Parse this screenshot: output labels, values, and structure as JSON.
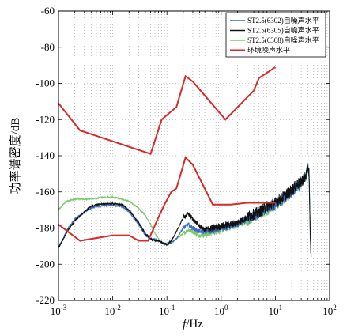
{
  "chart_data": {
    "type": "line",
    "title": "",
    "xlabel_italic": "f",
    "xlabel_rest": "/Hz",
    "ylabel": "功率谱密度/dB",
    "xscale": "log",
    "xlim": [
      0.001,
      100
    ],
    "ylim": [
      -220,
      -60
    ],
    "grid": true,
    "legend_position": "top-right",
    "x_ticks": [
      0.001,
      0.01,
      0.1,
      1,
      10,
      100
    ],
    "x_tick_labels": [
      {
        "base": "10",
        "exp": "-3"
      },
      {
        "base": "10",
        "exp": "-2"
      },
      {
        "base": "10",
        "exp": "-1"
      },
      {
        "base": "10",
        "exp": "0"
      },
      {
        "base": "10",
        "exp": "1"
      },
      {
        "base": "10",
        "exp": "2"
      }
    ],
    "y_ticks": [
      -60,
      -80,
      -100,
      -120,
      -140,
      -160,
      -180,
      -200,
      -220
    ],
    "y_tick_labels": [
      "-60",
      "-80",
      "-100",
      "-120",
      "-140",
      "-160",
      "-180",
      "-200",
      "-220"
    ],
    "series": [
      {
        "name": "ST2.5(6302)自噪声水平",
        "color": "#3b6fc4",
        "points": [
          [
            0.001,
            -191
          ],
          [
            0.0015,
            -180
          ],
          [
            0.002,
            -175
          ],
          [
            0.003,
            -171
          ],
          [
            0.004,
            -169
          ],
          [
            0.005,
            -168
          ],
          [
            0.007,
            -167.5
          ],
          [
            0.01,
            -167.5
          ],
          [
            0.015,
            -168
          ],
          [
            0.02,
            -171
          ],
          [
            0.03,
            -178
          ],
          [
            0.04,
            -184
          ],
          [
            0.05,
            -186
          ],
          [
            0.06,
            -186
          ],
          [
            0.07,
            -187
          ],
          [
            0.08,
            -188
          ],
          [
            0.1,
            -189
          ],
          [
            0.12,
            -188
          ],
          [
            0.15,
            -186
          ],
          [
            0.18,
            -182
          ],
          [
            0.2,
            -180
          ],
          [
            0.25,
            -178
          ],
          [
            0.3,
            -180
          ],
          [
            0.4,
            -182
          ],
          [
            0.5,
            -182
          ],
          [
            0.7,
            -181
          ],
          [
            1,
            -180
          ],
          [
            2,
            -178
          ],
          [
            3,
            -175
          ],
          [
            5,
            -172
          ],
          [
            7,
            -169
          ],
          [
            10,
            -167
          ],
          [
            15,
            -163
          ],
          [
            20,
            -160
          ],
          [
            25,
            -157
          ],
          [
            30,
            -155
          ],
          [
            35,
            -152
          ],
          [
            38,
            -150
          ],
          [
            40,
            -146
          ],
          [
            42,
            -150
          ],
          [
            43,
            -170
          ],
          [
            44,
            -185
          ],
          [
            45,
            -192
          ],
          [
            46,
            -194
          ]
        ]
      },
      {
        "name": "ST2.5(6305)自噪声水平",
        "color": "#111111",
        "points": [
          [
            0.001,
            -191
          ],
          [
            0.0015,
            -181
          ],
          [
            0.002,
            -176
          ],
          [
            0.003,
            -171
          ],
          [
            0.004,
            -168
          ],
          [
            0.005,
            -167
          ],
          [
            0.007,
            -166.5
          ],
          [
            0.01,
            -166.5
          ],
          [
            0.015,
            -167
          ],
          [
            0.02,
            -170
          ],
          [
            0.03,
            -177
          ],
          [
            0.04,
            -183
          ],
          [
            0.05,
            -186
          ],
          [
            0.06,
            -187
          ],
          [
            0.07,
            -187
          ],
          [
            0.08,
            -188
          ],
          [
            0.1,
            -189
          ],
          [
            0.12,
            -187
          ],
          [
            0.15,
            -182
          ],
          [
            0.18,
            -177
          ],
          [
            0.2,
            -174
          ],
          [
            0.25,
            -172
          ],
          [
            0.3,
            -175
          ],
          [
            0.4,
            -179
          ],
          [
            0.5,
            -181
          ],
          [
            0.7,
            -180
          ],
          [
            1,
            -179
          ],
          [
            2,
            -177
          ],
          [
            3,
            -174
          ],
          [
            5,
            -171
          ],
          [
            7,
            -168
          ],
          [
            10,
            -166
          ],
          [
            15,
            -162
          ],
          [
            20,
            -159
          ],
          [
            25,
            -156
          ],
          [
            30,
            -154
          ],
          [
            35,
            -152
          ],
          [
            38,
            -150
          ],
          [
            40,
            -145
          ],
          [
            42,
            -150
          ],
          [
            43,
            -170
          ],
          [
            44,
            -185
          ],
          [
            45,
            -192
          ],
          [
            46,
            -195
          ]
        ]
      },
      {
        "name": "ST2.5(6308)自噪声水平",
        "color": "#7dc86a",
        "points": [
          [
            0.001,
            -170
          ],
          [
            0.0013,
            -166
          ],
          [
            0.0015,
            -165
          ],
          [
            0.002,
            -164
          ],
          [
            0.003,
            -164
          ],
          [
            0.005,
            -163.5
          ],
          [
            0.007,
            -163
          ],
          [
            0.01,
            -163
          ],
          [
            0.015,
            -164
          ],
          [
            0.02,
            -165
          ],
          [
            0.03,
            -169
          ],
          [
            0.04,
            -173
          ],
          [
            0.05,
            -178
          ],
          [
            0.06,
            -183
          ],
          [
            0.07,
            -186
          ],
          [
            0.08,
            -188
          ],
          [
            0.1,
            -189
          ],
          [
            0.12,
            -188
          ],
          [
            0.15,
            -186
          ],
          [
            0.18,
            -184
          ],
          [
            0.2,
            -183
          ],
          [
            0.25,
            -181
          ],
          [
            0.3,
            -182
          ],
          [
            0.4,
            -184
          ],
          [
            0.5,
            -184
          ],
          [
            0.7,
            -182
          ],
          [
            1,
            -181
          ],
          [
            2,
            -178
          ],
          [
            3,
            -176
          ],
          [
            5,
            -172
          ],
          [
            7,
            -170
          ],
          [
            10,
            -167
          ],
          [
            15,
            -163
          ],
          [
            20,
            -160
          ],
          [
            25,
            -157
          ],
          [
            30,
            -155
          ],
          [
            35,
            -152
          ],
          [
            38,
            -150
          ],
          [
            40,
            -147
          ],
          [
            42,
            -151
          ],
          [
            43,
            -170
          ],
          [
            44,
            -185
          ],
          [
            45,
            -190
          ],
          [
            46,
            -192
          ]
        ]
      },
      {
        "name": "环境噪声水平",
        "color": "#d62a28",
        "points": [
          [
            0.001,
            -111
          ],
          [
            0.0025,
            -126
          ],
          [
            0.05,
            -139
          ],
          [
            0.08,
            -120
          ],
          [
            0.15,
            -113
          ],
          [
            0.22,
            -96
          ],
          [
            0.3,
            -99
          ],
          [
            1.2,
            -120
          ],
          [
            4,
            -104
          ],
          [
            5,
            -97
          ],
          [
            10,
            -91
          ]
        ],
        "points_low": [
          [
            0.001,
            -178
          ],
          [
            0.0025,
            -187
          ],
          [
            0.01,
            -184
          ],
          [
            0.02,
            -184
          ],
          [
            0.03,
            -187
          ],
          [
            0.045,
            -187
          ],
          [
            0.07,
            -174
          ],
          [
            0.09,
            -167
          ],
          [
            0.12,
            -160
          ],
          [
            0.15,
            -158
          ],
          [
            0.22,
            -141
          ],
          [
            0.3,
            -145
          ],
          [
            0.7,
            -167
          ],
          [
            1.5,
            -167
          ],
          [
            3,
            -166
          ],
          [
            8,
            -166
          ],
          [
            10,
            -166
          ]
        ]
      }
    ]
  }
}
